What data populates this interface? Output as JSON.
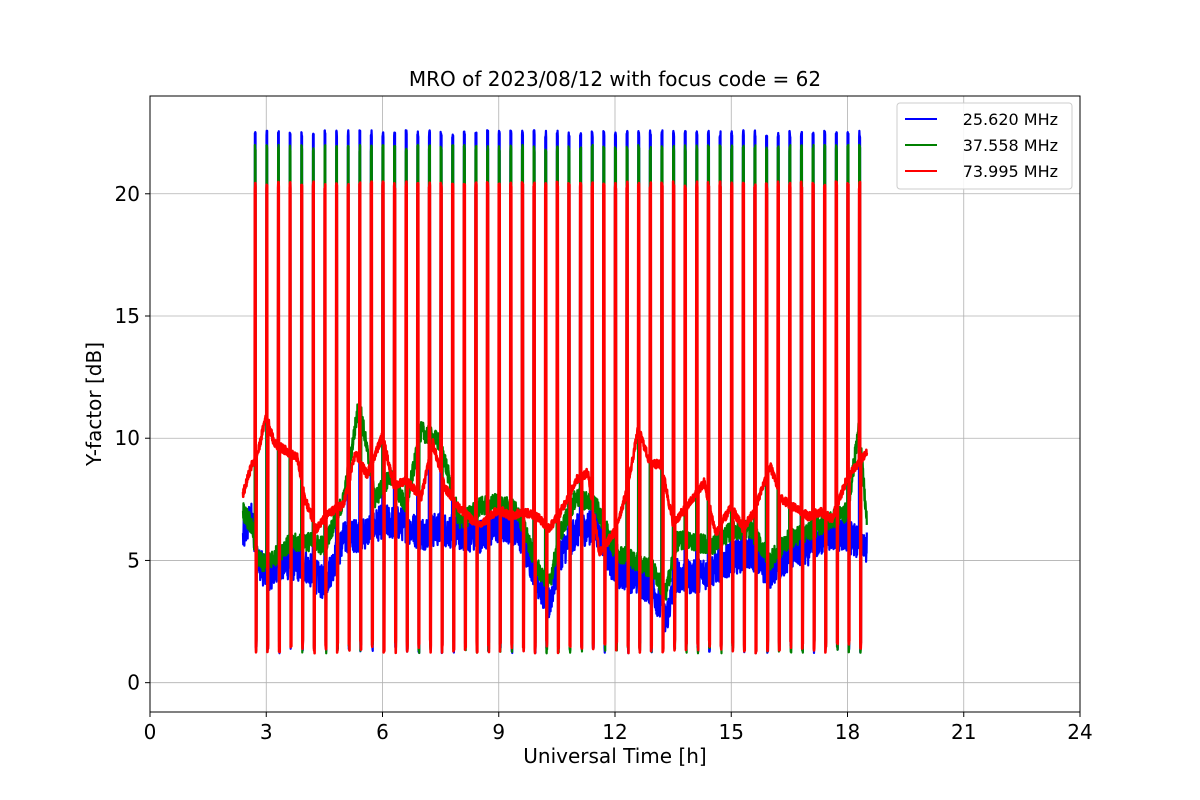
{
  "chart_data": {
    "type": "line",
    "title": "MRO of 2023/08/12 with focus code = 62",
    "xlabel": "Universal Time [h]",
    "ylabel": "Y-factor [dB]",
    "xlim": [
      0,
      24
    ],
    "ylim": [
      -1.2,
      24
    ],
    "xticks": [
      0,
      3,
      6,
      9,
      12,
      15,
      18,
      21,
      24
    ],
    "yticks": [
      0,
      5,
      10,
      15,
      20
    ],
    "grid": true,
    "legend_position": "top-right",
    "calibration_cycle": {
      "start_h": 2.4,
      "end_h": 18.5,
      "period_h": 0.3,
      "pulse_width_h": 0.05,
      "pulse_peak_db": {
        "25.620 MHz": 22.6,
        "37.558 MHz": 22.0,
        "73.995 MHz": 20.5
      },
      "pulse_low_db": 1.2
    },
    "series": [
      {
        "name": "25.620 MHz",
        "color": "#0000ff",
        "x": [
          2.4,
          2.6,
          2.8,
          3.0,
          3.5,
          4.0,
          4.5,
          5.0,
          5.5,
          6.0,
          6.5,
          7.0,
          7.5,
          8.0,
          8.5,
          9.0,
          9.5,
          10.0,
          10.3,
          10.6,
          11.0,
          11.5,
          12.0,
          12.5,
          13.0,
          13.3,
          13.6,
          14.0,
          14.5,
          15.0,
          15.5,
          16.0,
          16.5,
          17.0,
          17.5,
          18.0,
          18.5
        ],
        "y": [
          5.9,
          6.8,
          5.0,
          4.4,
          4.9,
          4.8,
          4.0,
          5.9,
          6.1,
          6.6,
          6.5,
          6.1,
          6.3,
          6.1,
          6.0,
          6.4,
          6.3,
          4.2,
          3.2,
          5.3,
          6.2,
          6.4,
          4.6,
          4.3,
          3.8,
          2.5,
          4.4,
          4.3,
          4.6,
          5.1,
          5.3,
          4.5,
          5.3,
          5.5,
          6.1,
          6.0,
          5.6
        ]
      },
      {
        "name": "37.558 MHz",
        "color": "#008000",
        "x": [
          2.4,
          2.6,
          2.8,
          3.0,
          3.5,
          4.0,
          4.5,
          5.0,
          5.4,
          5.8,
          6.2,
          6.6,
          7.0,
          7.5,
          8.0,
          8.5,
          9.0,
          9.5,
          10.0,
          10.3,
          10.6,
          11.0,
          11.5,
          12.0,
          12.5,
          13.0,
          13.3,
          13.6,
          14.0,
          14.5,
          15.0,
          15.5,
          16.0,
          16.5,
          17.0,
          17.5,
          18.0,
          18.3,
          18.5
        ],
        "y": [
          7.0,
          6.5,
          5.0,
          4.8,
          5.6,
          5.8,
          5.6,
          7.5,
          11.5,
          7.5,
          8.5,
          7.2,
          10.3,
          9.8,
          6.5,
          7.2,
          7.4,
          7.0,
          4.7,
          4.0,
          6.2,
          7.6,
          7.3,
          5.4,
          5.0,
          4.6,
          3.6,
          5.8,
          5.8,
          5.6,
          6.2,
          6.3,
          5.0,
          5.9,
          6.2,
          6.6,
          7.0,
          10.5,
          6.5
        ]
      },
      {
        "name": "73.995 MHz",
        "color": "#ff0000",
        "x": [
          2.4,
          2.6,
          2.8,
          3.0,
          3.2,
          3.5,
          3.8,
          4.0,
          4.3,
          4.6,
          5.0,
          5.3,
          5.6,
          6.0,
          6.3,
          6.6,
          7.0,
          7.3,
          7.6,
          8.0,
          8.5,
          9.0,
          9.3,
          9.6,
          10.0,
          10.3,
          10.6,
          11.0,
          11.3,
          11.6,
          12.0,
          12.3,
          12.6,
          12.9,
          13.2,
          13.5,
          13.8,
          14.0,
          14.3,
          14.6,
          15.0,
          15.3,
          15.6,
          16.0,
          16.3,
          16.6,
          17.0,
          17.3,
          17.6,
          18.0,
          18.5
        ],
        "y": [
          7.7,
          8.8,
          9.5,
          11.0,
          9.8,
          9.5,
          9.2,
          7.5,
          6.3,
          6.9,
          7.3,
          9.4,
          8.5,
          10.1,
          8.0,
          8.3,
          7.6,
          9.8,
          8.0,
          7.1,
          6.4,
          7.1,
          6.8,
          7.0,
          6.8,
          6.3,
          7.0,
          8.3,
          8.6,
          5.3,
          6.2,
          7.8,
          10.4,
          9.0,
          8.9,
          6.5,
          7.1,
          7.5,
          8.2,
          6.1,
          7.2,
          6.3,
          7.0,
          8.9,
          7.5,
          7.2,
          6.8,
          7.0,
          6.7,
          8.4,
          9.4
        ]
      }
    ]
  }
}
